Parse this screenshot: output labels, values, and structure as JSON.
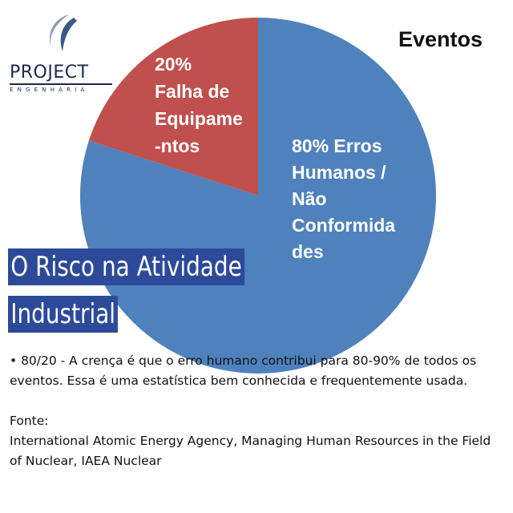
{
  "brand": {
    "name": "PROJECT",
    "subtitle": "ENGENHARIA",
    "logo_icon": "swoosh-icon"
  },
  "chart_data": {
    "type": "pie",
    "title": "Eventos",
    "slices": [
      {
        "label_lines": [
          "20%",
          "Falha de",
          "Equipame",
          "-ntos"
        ],
        "value": 20,
        "color": "#c0504d"
      },
      {
        "label_lines": [
          "80% Erros",
          "Humanos /",
          "Não",
          "Conformida",
          "des"
        ],
        "value": 80,
        "color": "#4f81bd"
      }
    ],
    "legend": "none"
  },
  "banner": {
    "line1": "O Risco na Atividade",
    "line2": "Industrial"
  },
  "bullet_text": "• 80/20 - A crença é que o erro humano contribui para 80-90% de todos os eventos. Essa é uma estatística bem conhecida e frequentemente usada.",
  "source": {
    "label": "Fonte:",
    "text": "International Atomic Energy Agency, Managing Human Resources in the Field of Nuclear, IAEA Nuclear"
  }
}
